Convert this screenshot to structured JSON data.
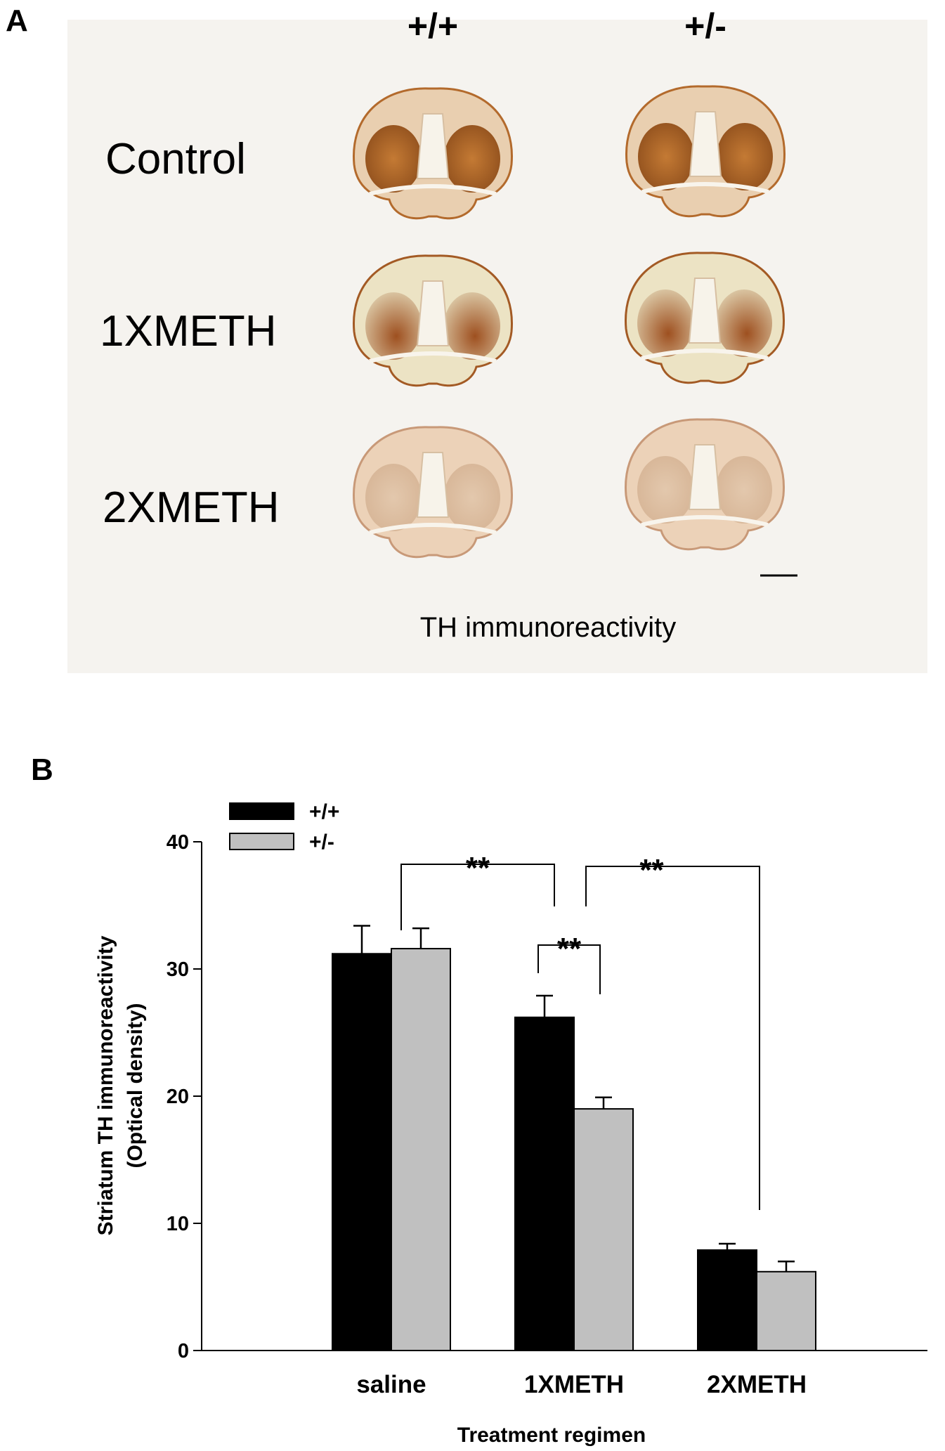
{
  "panel_a": {
    "letter": "A",
    "columns": [
      "+/+",
      "+/-"
    ],
    "rows": [
      "Control",
      "1XMETH",
      "2XMETH"
    ],
    "caption": "TH immunoreactivity",
    "stain_color": "#b06a2a",
    "background_color": "#f4f2ee"
  },
  "panel_b": {
    "letter": "B"
  },
  "chart_data": {
    "type": "bar",
    "categories": [
      "saline",
      "1XMETH",
      "2XMETH"
    ],
    "series": [
      {
        "name": "+/+",
        "values": [
          31.2,
          26.2,
          7.9
        ],
        "errors": [
          2.2,
          1.7,
          0.5
        ],
        "color": "#000000"
      },
      {
        "name": "+/-",
        "values": [
          31.6,
          19.0,
          6.2
        ],
        "errors": [
          1.6,
          0.9,
          0.8
        ],
        "color": "#c0c0c0"
      }
    ],
    "xlabel": "Treatment regimen",
    "ylabel_lines": [
      "Striatum TH immunoreactivity",
      "(Optical density)"
    ],
    "ylim": [
      0,
      40
    ],
    "yticks": [
      "0",
      "10",
      "20",
      "30",
      "40"
    ],
    "legend_position": "top-left",
    "significance": [
      {
        "label": "**",
        "from": {
          "category": 0,
          "series": "between"
        },
        "to": {
          "category": 1,
          "series": "between"
        }
      },
      {
        "label": "**",
        "from": {
          "category": 1,
          "series": 0
        },
        "to": {
          "category": 1,
          "series": 1
        }
      },
      {
        "label": "**",
        "from": {
          "category": 1,
          "series": "between"
        },
        "to": {
          "category": 2,
          "series": "between"
        }
      }
    ]
  }
}
